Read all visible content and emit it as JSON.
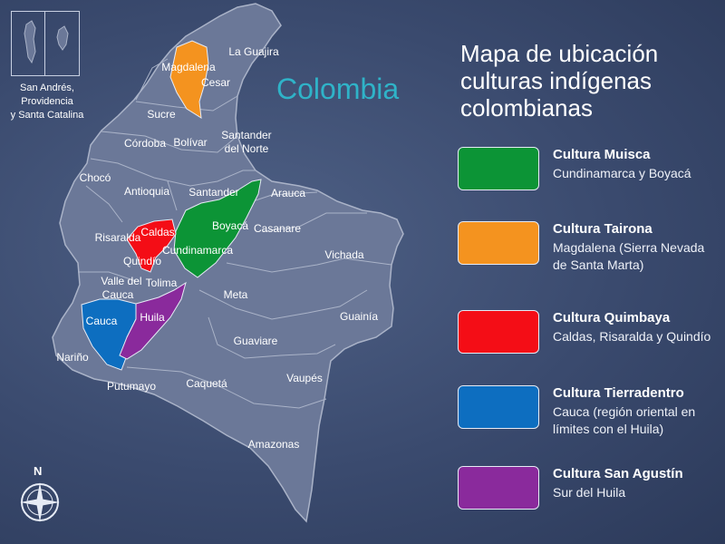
{
  "map": {
    "country_label": "Colombia",
    "inset_caption": [
      "San Andrés,",
      "Providencia",
      "y Santa Catalina"
    ],
    "north_label": "N",
    "departments": {
      "la_guajira": "La Guajira",
      "magdalena": "Magdalena",
      "cesar": "Cesar",
      "sucre": "Sucre",
      "santander_norte_1": "Santander",
      "santander_norte_2": "del Norte",
      "cordoba": "Córdoba",
      "bolivar": "Bolívar",
      "choco": "Chocó",
      "antioquia": "Antioquia",
      "santander": "Santander",
      "arauca": "Arauca",
      "boyaca": "Boyacá",
      "casanare": "Casanare",
      "risaralda": "Risaralda",
      "caldas": "Caldas",
      "cundinamarca": "Cundinamarca",
      "vichada": "Vichada",
      "quindio": "Quindío",
      "tolima": "Tolima",
      "valle_1": "Valle del",
      "valle_2": "Cauca",
      "meta": "Meta",
      "cauca": "Cauca",
      "huila": "Huila",
      "guainia": "Guainía",
      "narino": "Nariño",
      "guaviare": "Guaviare",
      "vaupes": "Vaupés",
      "putumayo": "Putumayo",
      "caqueta": "Caquetá",
      "amazonas": "Amazonas"
    }
  },
  "legend": {
    "title": [
      "Mapa de ubicación",
      "culturas indígenas",
      "colombianas"
    ],
    "items": [
      {
        "name": "Cultura Muisca",
        "desc": "Cundinamarca y Boyacá",
        "color": "#0c9436"
      },
      {
        "name": "Cultura Tairona",
        "desc": "Magdalena (Sierra Nevada de Santa Marta)",
        "color": "#f4931f"
      },
      {
        "name": "Cultura Quimbaya",
        "desc": "Caldas, Risaralda y Quindío",
        "color": "#f40d16"
      },
      {
        "name": "Cultura Tierradentro",
        "desc": "Cauca (región oriental en límites con el Huila)",
        "color": "#0d6ec0"
      },
      {
        "name": "Cultura San Agustín",
        "desc": "Sur del Huila",
        "color": "#8a2a9c"
      }
    ]
  },
  "colors": {
    "land": "#6b7898",
    "border": "#aab3c8",
    "background": "#3a4a6e",
    "country_label": "#2fb3c8"
  }
}
